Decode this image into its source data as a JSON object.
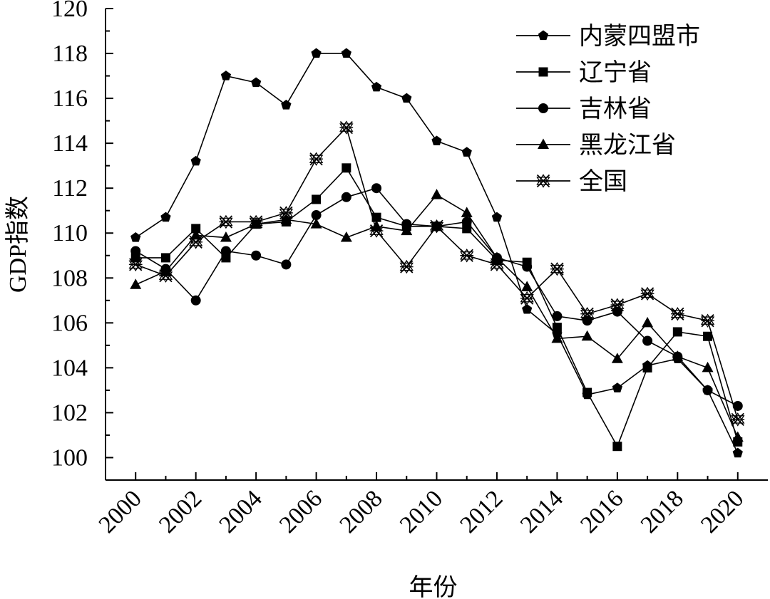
{
  "chart_data": {
    "type": "line",
    "title": "",
    "xlabel": "年份",
    "ylabel": "GDP指数",
    "x": [
      2000,
      2001,
      2002,
      2003,
      2004,
      2005,
      2006,
      2007,
      2008,
      2009,
      2010,
      2011,
      2012,
      2013,
      2014,
      2015,
      2016,
      2017,
      2018,
      2019,
      2020
    ],
    "xticks": [
      "2000",
      "2002",
      "2004",
      "2006",
      "2008",
      "2010",
      "2012",
      "2014",
      "2016",
      "2018",
      "2020"
    ],
    "xlim": [
      1999,
      2021
    ],
    "ylim": [
      99,
      120
    ],
    "yticks": [
      "100",
      "102",
      "104",
      "106",
      "108",
      "110",
      "112",
      "114",
      "116",
      "118",
      "120"
    ],
    "grid": false,
    "legend_position": "top-right",
    "series": [
      {
        "name": "内蒙四盟市",
        "marker": "pentagon",
        "values": [
          109.8,
          110.7,
          113.2,
          117.0,
          116.7,
          115.7,
          118.0,
          118.0,
          116.5,
          116.0,
          114.1,
          113.6,
          110.7,
          106.6,
          105.5,
          102.8,
          103.1,
          104.1,
          104.4,
          103.0,
          100.2
        ]
      },
      {
        "name": "辽宁省",
        "marker": "square",
        "values": [
          108.9,
          108.9,
          110.2,
          108.9,
          110.4,
          110.5,
          111.5,
          112.9,
          110.7,
          110.3,
          110.3,
          110.2,
          108.8,
          108.7,
          105.8,
          102.9,
          100.5,
          104.0,
          105.6,
          105.4,
          100.7
        ]
      },
      {
        "name": "吉林省",
        "marker": "circle",
        "values": [
          109.2,
          108.4,
          107.0,
          109.2,
          109.0,
          108.6,
          110.8,
          111.6,
          112.0,
          110.4,
          110.3,
          110.5,
          108.9,
          108.5,
          106.3,
          106.1,
          106.5,
          105.2,
          104.5,
          103.0,
          102.3
        ]
      },
      {
        "name": "黑龙江省",
        "marker": "triangle",
        "values": [
          107.7,
          108.3,
          109.9,
          109.8,
          110.4,
          110.6,
          110.4,
          109.8,
          110.3,
          110.1,
          111.7,
          110.9,
          108.9,
          107.6,
          105.3,
          105.4,
          104.4,
          106.0,
          104.5,
          104.0,
          100.9
        ]
      },
      {
        "name": "全国",
        "marker": "xstar",
        "values": [
          108.6,
          108.1,
          109.6,
          110.5,
          110.5,
          110.9,
          113.3,
          114.7,
          110.1,
          108.5,
          110.3,
          109.0,
          108.6,
          107.1,
          108.4,
          106.4,
          106.8,
          107.3,
          106.4,
          106.1,
          101.7
        ]
      }
    ]
  }
}
